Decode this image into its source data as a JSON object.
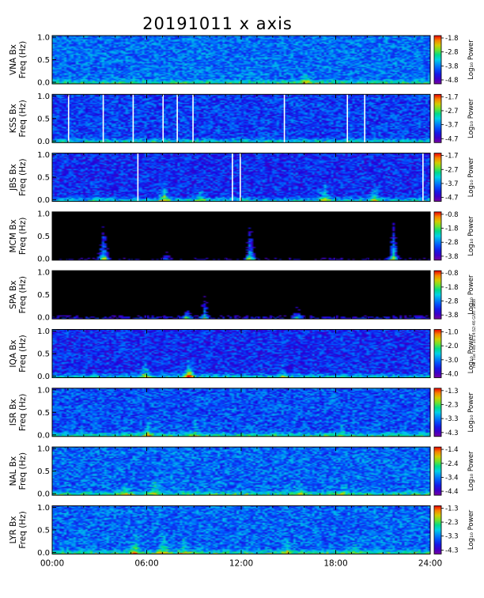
{
  "title": "20191011 x axis",
  "stamp_text": "mit Tue Feb 16 14:52:46 GMT 2038",
  "chart_data": {
    "type": "heatmap",
    "title": "20191011 x axis",
    "x_ticks": [
      "00:00",
      "06:00",
      "12:00",
      "18:00",
      "24:00"
    ],
    "x_range_hours": [
      0,
      24
    ],
    "y_range_hz": [
      0,
      1.0
    ],
    "y_ticks": [
      "0.0",
      "0.5",
      "1.0"
    ],
    "colorbar_label": "Log₁₀ Power",
    "panels": [
      {
        "station": "VNA",
        "ylabel_top": "VNA Bx",
        "ylabel_bottom": "Freq (Hz)",
        "cbar_ticks": [
          "-1.8",
          "-2.8",
          "-3.8",
          "-4.8"
        ],
        "cmin": -4.8,
        "cmax": -1.6,
        "noise": -3.7,
        "white_gaps": [],
        "activity": [
          [
            1.5,
            -4.0,
            0.12
          ],
          [
            16.0,
            -2.6,
            0.25
          ]
        ]
      },
      {
        "station": "KSS",
        "ylabel_top": "KSS Bx",
        "ylabel_bottom": "Freq (Hz)",
        "cbar_ticks": [
          "-1.7",
          "-2.7",
          "-3.7",
          "-4.7"
        ],
        "cmin": -4.7,
        "cmax": -1.7,
        "noise": -3.9,
        "white_gaps": [
          1.0,
          3.2,
          5.1,
          7.0,
          7.9,
          8.9,
          14.7,
          18.7,
          19.8
        ],
        "activity": []
      },
      {
        "station": "JBS",
        "ylabel_top": "JBS Bx",
        "ylabel_bottom": "Freq (Hz)",
        "cbar_ticks": [
          "-1.7",
          "-2.7",
          "-3.7",
          "-4.7"
        ],
        "cmin": -4.7,
        "cmax": -1.7,
        "noise": -4.0,
        "white_gaps": [
          5.4,
          11.4,
          11.9,
          23.5
        ],
        "activity": [
          [
            7.0,
            -2.7,
            0.45
          ],
          [
            9.3,
            -3.2,
            0.3
          ],
          [
            17.2,
            -3.0,
            0.4
          ],
          [
            20.4,
            -3.0,
            0.4
          ]
        ]
      },
      {
        "station": "MCM",
        "ylabel_top": "MCM Bx",
        "ylabel_bottom": "Freq (Hz)",
        "cbar_ticks": [
          "-0.8",
          "-1.8",
          "-2.8",
          "-3.8"
        ],
        "cmin": -3.8,
        "cmax": -0.8,
        "noise": -4.5,
        "white_gaps": [],
        "activity": [
          [
            3.2,
            -2.0,
            1.0
          ],
          [
            12.5,
            -2.0,
            1.0
          ],
          [
            21.6,
            -2.0,
            1.0
          ],
          [
            7.2,
            -3.3,
            0.25
          ]
        ]
      },
      {
        "station": "SPA",
        "ylabel_top": "SPA Bx",
        "ylabel_bottom": "Freq (Hz)",
        "cbar_ticks": [
          "-0.8",
          "-1.8",
          "-2.8",
          "-3.8"
        ],
        "cmin": -3.8,
        "cmax": -0.8,
        "noise": -4.2,
        "white_gaps": [],
        "activity": [
          [
            8.5,
            -2.3,
            0.2
          ],
          [
            15.5,
            -2.9,
            0.3
          ],
          [
            9.6,
            -2.7,
            0.6
          ]
        ]
      },
      {
        "station": "IQA",
        "ylabel_top": "IQA Bx",
        "ylabel_bottom": "Freq (Hz)",
        "cbar_ticks": [
          "-1.0",
          "-2.0",
          "-3.0",
          "-4.0"
        ],
        "cmin": -4.0,
        "cmax": -1.0,
        "noise": -3.3,
        "white_gaps": [],
        "activity": [
          [
            8.6,
            -1.3,
            0.35
          ],
          [
            5.8,
            -2.2,
            0.4
          ],
          [
            14.6,
            -2.6,
            0.3
          ]
        ]
      },
      {
        "station": "ISR",
        "ylabel_top": "ISR Bx",
        "ylabel_bottom": "Freq (Hz)",
        "cbar_ticks": [
          "-1.3",
          "-2.3",
          "-3.3",
          "-4.3"
        ],
        "cmin": -4.3,
        "cmax": -1.3,
        "noise": -3.4,
        "white_gaps": [],
        "activity": [
          [
            6.0,
            -2.6,
            0.45
          ],
          [
            9.0,
            -2.7,
            0.35
          ],
          [
            18.3,
            -2.8,
            0.3
          ]
        ]
      },
      {
        "station": "NAL",
        "ylabel_top": "NAL Bx",
        "ylabel_bottom": "Freq (Hz)",
        "cbar_ticks": [
          "-1.4",
          "-2.4",
          "-3.4",
          "-4.4"
        ],
        "cmin": -4.4,
        "cmax": -1.4,
        "noise": -3.4,
        "white_gaps": [],
        "activity": [
          [
            4.6,
            -2.7,
            0.4
          ],
          [
            6.5,
            -2.6,
            0.5
          ],
          [
            15.6,
            -2.8,
            0.4
          ],
          [
            18.5,
            -2.9,
            0.3
          ]
        ]
      },
      {
        "station": "LYR",
        "ylabel_top": "LYR Bx",
        "ylabel_bottom": "Freq (Hz)",
        "cbar_ticks": [
          "-1.3",
          "-2.3",
          "-3.3",
          "-4.3"
        ],
        "cmin": -4.3,
        "cmax": -1.3,
        "noise": -3.3,
        "white_gaps": [],
        "activity": [
          [
            5.2,
            -2.4,
            0.5
          ],
          [
            7.0,
            -2.4,
            0.5
          ],
          [
            8.3,
            -2.5,
            0.4
          ],
          [
            14.8,
            -2.5,
            0.45
          ],
          [
            19.2,
            -2.9,
            0.3
          ]
        ]
      }
    ]
  }
}
